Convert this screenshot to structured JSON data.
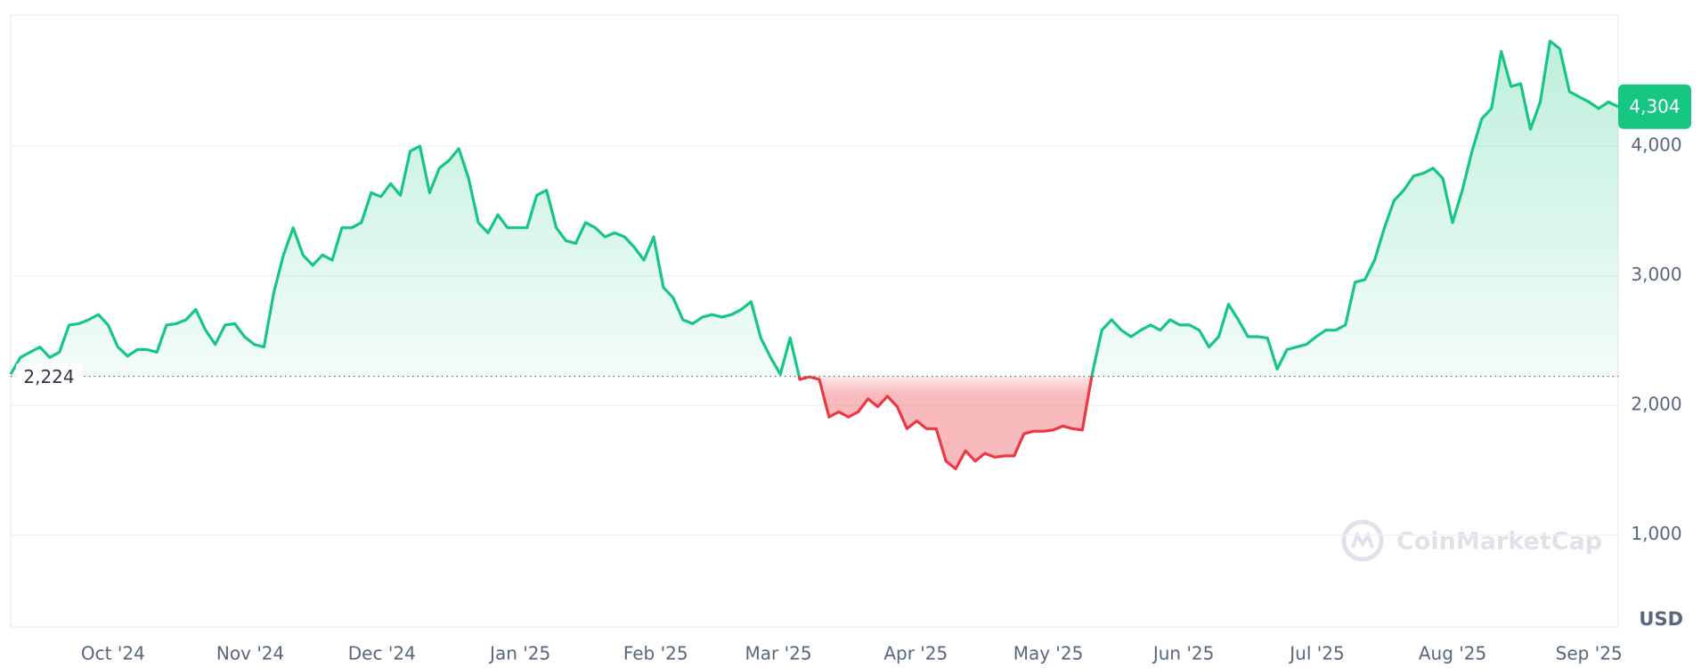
{
  "chart_data": {
    "type": "line",
    "currency": "USD",
    "watermark": "CoinMarketCap",
    "up_color": "#16c784",
    "down_color": "#ea3943",
    "grid": true,
    "baseline": {
      "value": 2224,
      "label": "2,224"
    },
    "current": {
      "value": 4304,
      "label": "4,304"
    },
    "ylim": [
      290,
      5010
    ],
    "yticks": [
      {
        "value": 1000,
        "label": "1,000"
      },
      {
        "value": 2000,
        "label": "2,000"
      },
      {
        "value": 3000,
        "label": "3,000"
      },
      {
        "value": 4000,
        "label": "4,000"
      }
    ],
    "xlim": [
      0,
      165
    ],
    "xticks": [
      {
        "value": 10.5,
        "label": "Oct '24"
      },
      {
        "value": 24.6,
        "label": "Nov '24"
      },
      {
        "value": 38.1,
        "label": "Dec '24"
      },
      {
        "value": 52.3,
        "label": "Jan '25"
      },
      {
        "value": 66.2,
        "label": "Feb '25"
      },
      {
        "value": 78.8,
        "label": "Mar '25"
      },
      {
        "value": 92.9,
        "label": "Apr '25"
      },
      {
        "value": 106.5,
        "label": "May '25"
      },
      {
        "value": 120.4,
        "label": "Jun '25"
      },
      {
        "value": 134.1,
        "label": "Jul '25"
      },
      {
        "value": 148.0,
        "label": "Aug '25"
      },
      {
        "value": 162.0,
        "label": "Sep '25"
      }
    ],
    "values": [
      2240,
      2370,
      2410,
      2450,
      2370,
      2410,
      2620,
      2630,
      2660,
      2700,
      2620,
      2450,
      2380,
      2430,
      2430,
      2410,
      2620,
      2630,
      2660,
      2740,
      2580,
      2470,
      2620,
      2630,
      2530,
      2470,
      2450,
      2870,
      3160,
      3370,
      3160,
      3080,
      3160,
      3120,
      3370,
      3370,
      3410,
      3640,
      3610,
      3710,
      3620,
      3960,
      4000,
      3640,
      3830,
      3890,
      3980,
      3750,
      3410,
      3330,
      3470,
      3370,
      3370,
      3370,
      3620,
      3660,
      3370,
      3270,
      3250,
      3410,
      3370,
      3300,
      3330,
      3300,
      3220,
      3120,
      3300,
      2910,
      2830,
      2660,
      2630,
      2680,
      2700,
      2680,
      2700,
      2740,
      2800,
      2520,
      2370,
      2240,
      2520,
      2200,
      2220,
      2200,
      1910,
      1950,
      1910,
      1950,
      2050,
      1990,
      2070,
      1990,
      1820,
      1880,
      1820,
      1820,
      1570,
      1510,
      1650,
      1570,
      1630,
      1600,
      1610,
      1610,
      1780,
      1800,
      1800,
      1810,
      1840,
      1820,
      1810,
      2240,
      2580,
      2660,
      2580,
      2530,
      2580,
      2620,
      2580,
      2660,
      2620,
      2620,
      2580,
      2450,
      2530,
      2780,
      2660,
      2530,
      2530,
      2520,
      2280,
      2430,
      2450,
      2470,
      2530,
      2580,
      2580,
      2620,
      2950,
      2970,
      3120,
      3370,
      3580,
      3660,
      3770,
      3790,
      3830,
      3750,
      3410,
      3660,
      3960,
      4210,
      4290,
      4730,
      4460,
      4480,
      4130,
      4340,
      4810,
      4750,
      4420,
      4380,
      4340,
      4290,
      4340,
      4304
    ]
  }
}
